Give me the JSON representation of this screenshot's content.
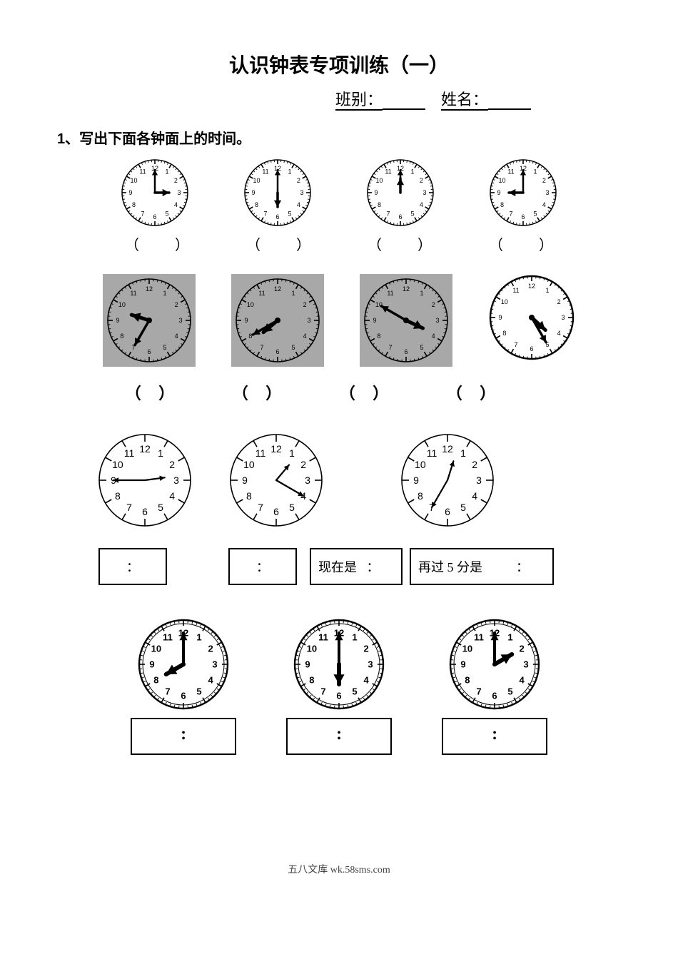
{
  "title": "认识钟表专项训练（一）",
  "header": {
    "class_label": "班别：",
    "name_label": "姓名："
  },
  "question1": "1、写出下面各钟面上的时间。",
  "row1": {
    "clocks": [
      {
        "hour": 3,
        "minute": 0,
        "style": "tickMinute"
      },
      {
        "hour": 6,
        "minute": 0,
        "style": "tickMinute"
      },
      {
        "hour": 12,
        "minute": 0,
        "style": "tickMinute"
      },
      {
        "hour": 9,
        "minute": 0,
        "style": "tickMinute"
      }
    ],
    "paren_gap": "               "
  },
  "row2": {
    "clocks": [
      {
        "hour": 9,
        "minute": 35,
        "style": "shaded"
      },
      {
        "hour": 7,
        "minute": 40,
        "style": "shaded"
      },
      {
        "hour": 3,
        "minute": 50,
        "style": "shaded"
      },
      {
        "hour": 4,
        "minute": 25,
        "style": "hollowThick"
      }
    ]
  },
  "row3": {
    "clocks": [
      {
        "hour": 2,
        "minute": 45,
        "style": "simpleTicks"
      },
      {
        "hour": 1,
        "minute": 20,
        "style": "simpleTicks"
      },
      {
        "hour": 12,
        "minute": 35,
        "style": "simpleTicks"
      }
    ],
    "colon": "：",
    "now_label": "现在是",
    "after_label": "再过 5 分是"
  },
  "row4": {
    "clocks": [
      {
        "hour": 8,
        "minute": 0,
        "style": "boldFace"
      },
      {
        "hour": 6,
        "minute": 0,
        "style": "boldFace"
      },
      {
        "hour": 2,
        "minute": 0,
        "style": "boldFace"
      }
    ],
    "colon_dots": "："
  },
  "footer": "五八文库 wk.58sms.com",
  "styles": {
    "tickMinute": {
      "radius": 46,
      "numRadius": 34,
      "fontSize": 9,
      "bg": "#ffffff",
      "minuteTicks": true,
      "hourTickLen": 6,
      "minTickLen": 3,
      "hourHandLen": 20,
      "hourHandW": 3.5,
      "minHandLen": 32,
      "minHandW": 2.5,
      "stroke": "#000000",
      "strokeW": 1.5
    },
    "shaded": {
      "radius": 58,
      "numRadius": 44,
      "fontSize": 9,
      "bg": "#a8a8a8",
      "minuteTicks": true,
      "hourTickLen": 7,
      "minTickLen": 3,
      "hourHandLen": 26,
      "hourHandW": 5,
      "minHandLen": 40,
      "minHandW": 3.5,
      "stroke": "#000000",
      "strokeW": 1.6,
      "centerDot": 4,
      "boxBg": "#a8a8a8",
      "boxSize": 130
    },
    "hollowThick": {
      "radius": 58,
      "numRadius": 44,
      "fontSize": 9,
      "bg": "#ffffff",
      "minuteTicks": true,
      "hourTickLen": 7,
      "minTickLen": 3,
      "hourHandLen": 26,
      "hourHandW": 5,
      "minHandLen": 40,
      "minHandW": 3.5,
      "stroke": "#000000",
      "strokeW": 2.4,
      "centerDot": 4
    },
    "simpleTicks": {
      "radius": 64,
      "numRadius": 44,
      "fontSize": 14,
      "bg": "#ffffff",
      "minuteTicks": false,
      "hourTickLen": 10,
      "minTickLen": 0,
      "hourHandLen": 28,
      "hourHandW": 2.2,
      "minHandLen": 44,
      "minHandW": 2.2,
      "stroke": "#000000",
      "strokeW": 1.6,
      "tickInside": true
    },
    "boldFace": {
      "radius": 62,
      "numRadius": 44,
      "fontSize": 13,
      "bg": "#ffffff",
      "minuteTicks": true,
      "hourTickLen": 8,
      "minTickLen": 4,
      "hourHandLen": 28,
      "hourHandW": 6,
      "minHandLen": 44,
      "minHandW": 4,
      "stroke": "#000000",
      "strokeW": 2.4,
      "centerDot": 3,
      "boldNums": true,
      "ring": true
    }
  }
}
